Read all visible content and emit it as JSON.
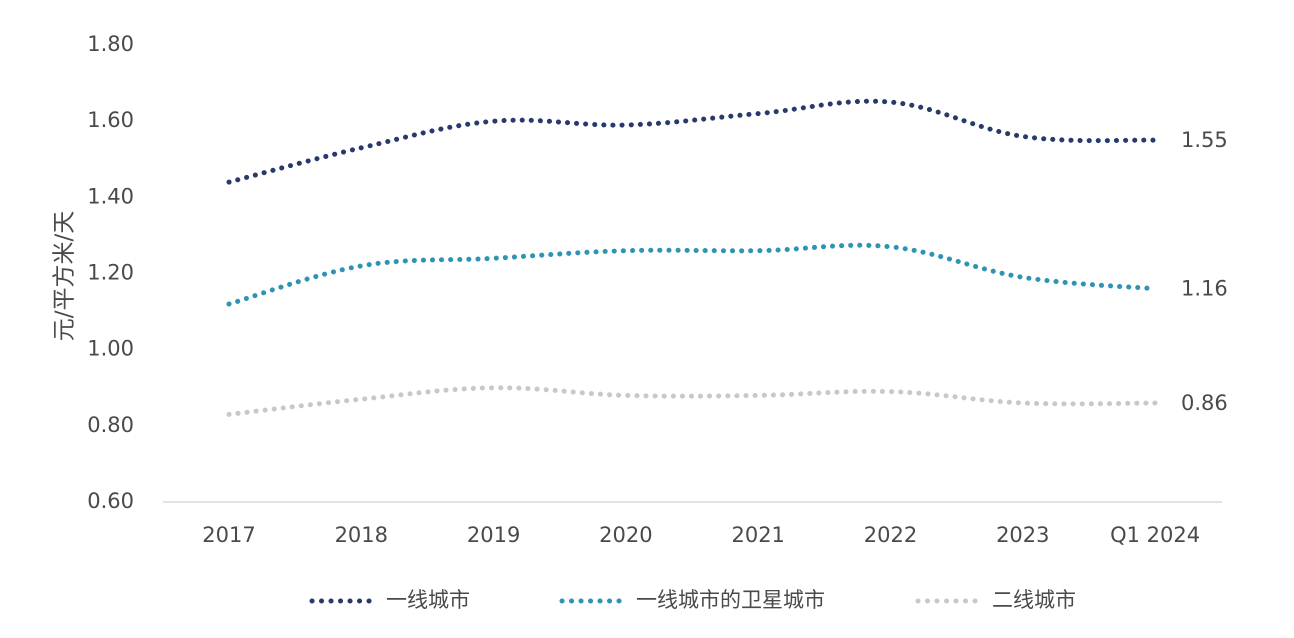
{
  "chart_data": {
    "type": "line",
    "title": "",
    "xlabel": "",
    "ylabel": "元/平方米/天",
    "categories": [
      "2017",
      "2018",
      "2019",
      "2020",
      "2021",
      "2022",
      "2023",
      "Q1 2024"
    ],
    "ylim": [
      0.6,
      1.8
    ],
    "yticks": [
      "0.60",
      "0.80",
      "1.00",
      "1.20",
      "1.40",
      "1.60",
      "1.80"
    ],
    "grid": false,
    "legend_position": "bottom",
    "series": [
      {
        "name": "一线城市",
        "values": [
          1.44,
          1.53,
          1.6,
          1.59,
          1.62,
          1.65,
          1.56,
          1.55
        ],
        "end_label": "1.55",
        "color": "#273a6b"
      },
      {
        "name": "一线城市的卫星城市",
        "values": [
          1.12,
          1.22,
          1.24,
          1.26,
          1.26,
          1.27,
          1.19,
          1.16
        ],
        "end_label": "1.16",
        "color": "#2f93b3"
      },
      {
        "name": "二线城市",
        "values": [
          0.83,
          0.87,
          0.9,
          0.88,
          0.88,
          0.89,
          0.86,
          0.86
        ],
        "end_label": "0.86",
        "color": "#c8c8c8"
      }
    ]
  }
}
